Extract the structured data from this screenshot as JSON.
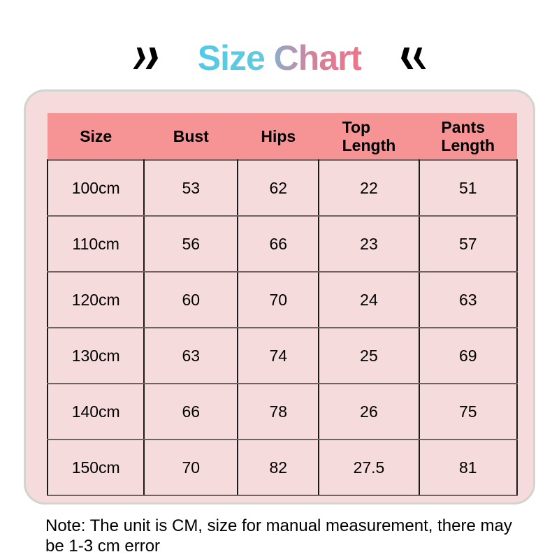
{
  "header": {
    "title": "Size Chart",
    "title_gradient": [
      "#50CAE9",
      "#63C9DF",
      "#9FA2BE",
      "#D5809A",
      "#EE7589"
    ],
    "left_icon": "double-chevron-right",
    "right_icon": "double-chevron-left",
    "icon_color": "#000000"
  },
  "size_chart": {
    "card_bg": "#F5DBDB",
    "card_border": "#D3D3CF",
    "header_bg": "#F69395",
    "columns": [
      "Size",
      "Bust",
      "Hips",
      "Top\nLength",
      "Pants\nLength"
    ],
    "rows": [
      [
        "100cm",
        "53",
        "62",
        "22",
        "51"
      ],
      [
        "110cm",
        "56",
        "66",
        "23",
        "57"
      ],
      [
        "120cm",
        "60",
        "70",
        "24",
        "63"
      ],
      [
        "130cm",
        "63",
        "74",
        "25",
        "69"
      ],
      [
        "140cm",
        "66",
        "78",
        "26",
        "75"
      ],
      [
        "150cm",
        "70",
        "82",
        "27.5",
        "81"
      ]
    ]
  },
  "note": {
    "text": "Note: The unit is CM, size for manual measurement, there may\nbe 1-3 cm error"
  }
}
